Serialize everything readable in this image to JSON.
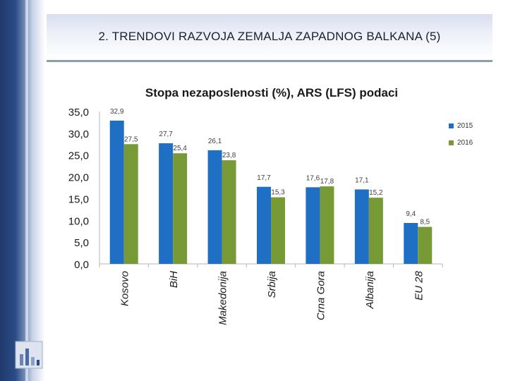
{
  "slide": {
    "title": "2. TRENDOVI RAZVOJA ZEMALJA ZAPADNOG BALKANA (5)"
  },
  "colors": {
    "series_2015": "#1f6fc5",
    "series_2016": "#789a36"
  },
  "chart_data": {
    "type": "bar",
    "title": "Stopa nezaposlenosti (%), ARS (LFS) podaci",
    "xlabel": "",
    "ylabel": "",
    "ylim": [
      0,
      35
    ],
    "yticks": [
      "0,0",
      "5,0",
      "10,0",
      "15,0",
      "20,0",
      "25,0",
      "30,0",
      "35,0"
    ],
    "grid": false,
    "legend_position": "right",
    "categories": [
      "Kosovo",
      "BiH",
      "Makedonija",
      "Srbija",
      "Crna Gora",
      "Albanija",
      "EU 28"
    ],
    "series": [
      {
        "name": "2015",
        "values": [
          32.9,
          27.7,
          26.1,
          17.7,
          17.6,
          17.1,
          9.4
        ],
        "labels": [
          "32,9",
          "27,7",
          "26,1",
          "17,7",
          "17,6",
          "17,1",
          "9,4"
        ]
      },
      {
        "name": "2016",
        "values": [
          27.5,
          25.4,
          23.8,
          15.3,
          17.8,
          15.2,
          8.5
        ],
        "labels": [
          "27,5",
          "25,4",
          "23,8",
          "15,3",
          "17,8",
          "15,2",
          "8,5"
        ]
      }
    ]
  }
}
